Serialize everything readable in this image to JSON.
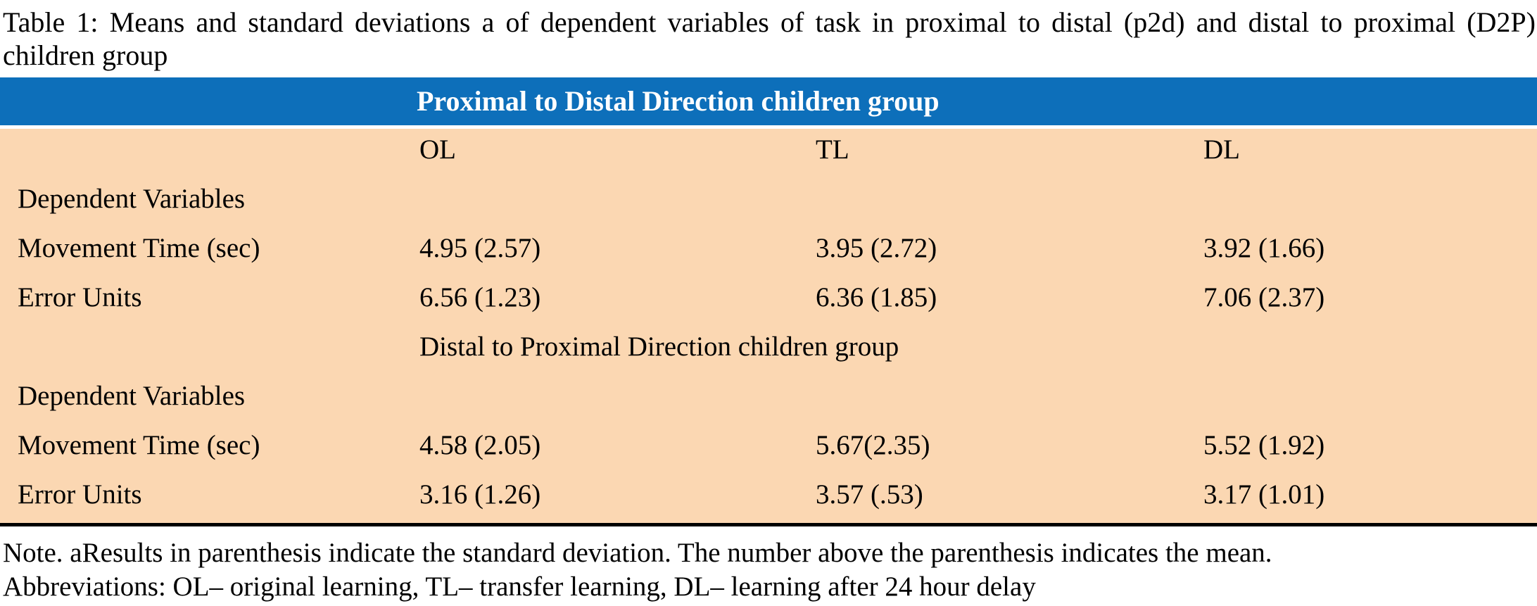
{
  "caption": "Table 1: Means and standard deviations a of dependent variables of task in proximal to distal (p2d) and distal to proximal (D2P) children group",
  "table": {
    "columns": [
      "OL",
      "TL",
      "DL"
    ],
    "sections": [
      {
        "header": "Proximal to Distal Direction children group",
        "group_label": "Dependent Variables",
        "rows": [
          {
            "label": "Movement Time (sec)",
            "values": [
              "4.95 (2.57)",
              "3.95 (2.72)",
              "3.92 (1.66)"
            ]
          },
          {
            "label": "Error Units",
            "values": [
              "6.56 (1.23)",
              "6.36 (1.85)",
              "7.06 (2.37)"
            ]
          }
        ]
      },
      {
        "header": "Distal to Proximal Direction children group",
        "group_label": "Dependent Variables",
        "rows": [
          {
            "label": "Movement Time (sec)",
            "values": [
              "4.58 (2.05)",
              "5.67(2.35)",
              "5.52 (1.92)"
            ]
          },
          {
            "label": "Error Units",
            "values": [
              "3.16 (1.26)",
              "3.57 (.53)",
              "3.17 (1.01)"
            ]
          }
        ]
      }
    ]
  },
  "notes": {
    "line1": "Note. aResults in parenthesis indicate the standard deviation. The number above the parenthesis indicates the mean.",
    "line2": "Abbreviations: OL– original learning, TL– transfer learning, DL– learning after 24 hour delay"
  },
  "colors": {
    "header_bg": "#0d6fba",
    "header_text": "#ffffff",
    "body_bg": "#fbd7b2",
    "text": "#000000",
    "rule": "#000000"
  }
}
